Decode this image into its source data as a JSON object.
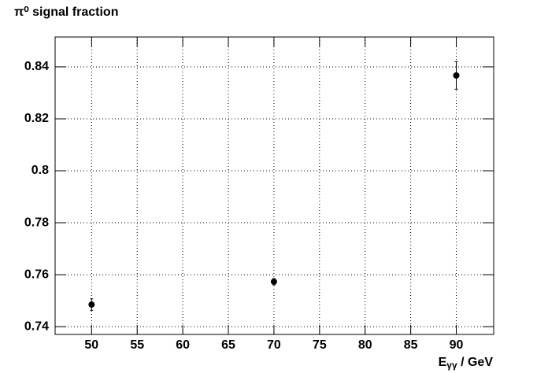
{
  "chart_data": {
    "type": "errorbar",
    "title": "π⁰ signal fraction",
    "x_label": [
      "E",
      "γγ",
      " / GeV"
    ],
    "x": [
      50,
      70,
      90
    ],
    "series": [
      {
        "color": "#000000",
        "values": [
          0.7485,
          0.7573,
          0.8367
        ],
        "errors": [
          0.0022,
          0.0012,
          0.0053
        ]
      }
    ],
    "xlim": [
      46,
      94.1
    ],
    "xticks": [
      50,
      55,
      60,
      65,
      70,
      75,
      80,
      85,
      90
    ],
    "ylim": [
      0.737,
      0.8515
    ],
    "yticks": [
      0.74,
      0.76,
      0.78,
      0.8,
      0.82,
      0.84
    ],
    "grid": true
  }
}
